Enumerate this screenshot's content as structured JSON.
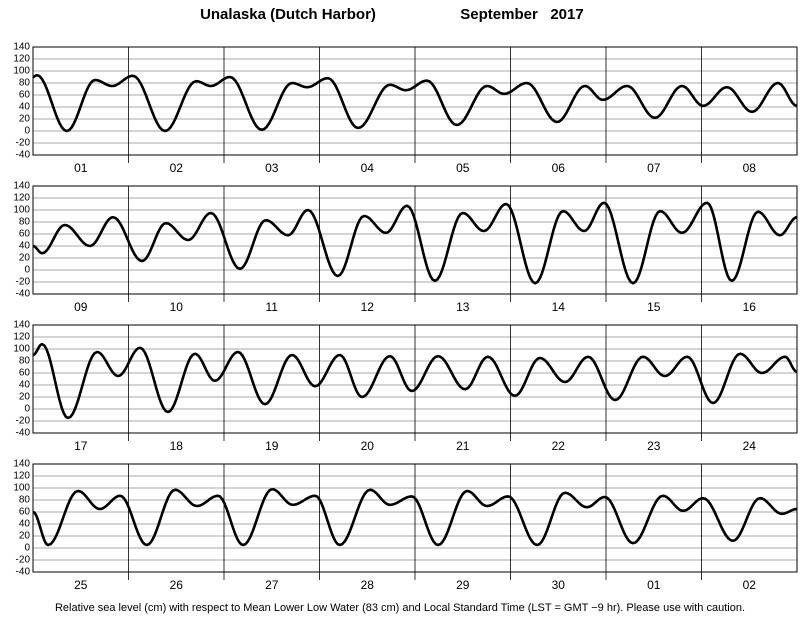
{
  "header": {
    "title": "Unalaska (Dutch Harbor)",
    "date": "September   2017"
  },
  "footnote": "Relative sea level (cm) with respect to Mean Lower Low Water (83 cm) and Local Standard Time (LST = GMT −9 hr). Please use with caution.",
  "chart_data": [
    {
      "type": "line",
      "color": "#000000",
      "xlim": [
        0,
        192
      ],
      "xticks": [
        24,
        48,
        72,
        96,
        120,
        144,
        168
      ],
      "ylim": [
        -40,
        140
      ],
      "yticks": [
        -40,
        -20,
        0,
        20,
        40,
        60,
        80,
        100,
        120,
        140
      ],
      "grid": true,
      "categories": [
        "01",
        "02",
        "03",
        "04",
        "05",
        "06",
        "07",
        "08"
      ],
      "x": [
        0,
        1.0,
        8.5,
        15.6,
        19.9,
        25.1,
        33.2,
        41.0,
        44.7,
        49.5,
        57.5,
        65.1,
        68.9,
        74.1,
        81.7,
        89.7,
        93.7,
        99.0,
        106.5,
        114.1,
        118.4,
        124.1,
        131.7,
        138.7,
        143.2,
        149.3,
        156.3,
        163.1,
        168.4,
        174.4,
        180.7,
        187.2,
        192
      ],
      "values": [
        90,
        93,
        0,
        85,
        75,
        92,
        0,
        83,
        75,
        90,
        2,
        80,
        73,
        88,
        5,
        77,
        68,
        84,
        10,
        75,
        62,
        80,
        15,
        75,
        52,
        75,
        22,
        75,
        42,
        73,
        32,
        80,
        42
      ]
    },
    {
      "type": "line",
      "color": "#000000",
      "xlim": [
        0,
        192
      ],
      "xticks": [
        24,
        48,
        72,
        96,
        120,
        144,
        168
      ],
      "ylim": [
        -40,
        140
      ],
      "yticks": [
        -40,
        -20,
        0,
        20,
        40,
        60,
        80,
        100,
        120,
        140
      ],
      "grid": true,
      "categories": [
        "09",
        "10",
        "11",
        "12",
        "13",
        "14",
        "15",
        "16"
      ],
      "x": [
        0,
        2.3,
        8.0,
        14.3,
        20.1,
        27.4,
        33.4,
        39.0,
        44.7,
        52.0,
        58.5,
        64.1,
        69.1,
        76.6,
        83.2,
        88.7,
        94.0,
        101.0,
        108.0,
        113.3,
        118.9,
        126.2,
        133.2,
        138.5,
        143.5,
        150.8,
        157.6,
        163.1,
        169.4,
        175.6,
        182.2,
        187.7,
        192
      ],
      "values": [
        40,
        28,
        75,
        40,
        88,
        15,
        78,
        50,
        95,
        2,
        83,
        58,
        100,
        -10,
        90,
        62,
        107,
        -18,
        95,
        65,
        110,
        -22,
        98,
        65,
        112,
        -22,
        98,
        62,
        112,
        -18,
        97,
        58,
        88
      ]
    },
    {
      "type": "line",
      "color": "#000000",
      "xlim": [
        0,
        192
      ],
      "xticks": [
        24,
        48,
        72,
        96,
        120,
        144,
        168
      ],
      "ylim": [
        -40,
        140
      ],
      "yticks": [
        -40,
        -20,
        0,
        20,
        40,
        60,
        80,
        100,
        120,
        140
      ],
      "grid": true,
      "categories": [
        "17",
        "18",
        "19",
        "20",
        "21",
        "22",
        "23",
        "24"
      ],
      "x": [
        0,
        2.3,
        8.8,
        16.1,
        21.4,
        26.9,
        33.9,
        40.7,
        45.7,
        51.5,
        58.3,
        65.1,
        70.9,
        77.1,
        82.7,
        89.7,
        95.2,
        101.8,
        108.6,
        114.3,
        121.1,
        127.4,
        133.7,
        139.5,
        146.3,
        153.3,
        158.8,
        164.4,
        170.9,
        177.7,
        183.2,
        189.0,
        192
      ],
      "values": [
        90,
        108,
        -15,
        95,
        55,
        102,
        -5,
        92,
        47,
        95,
        8,
        90,
        38,
        90,
        20,
        88,
        30,
        88,
        33,
        87,
        22,
        85,
        45,
        87,
        15,
        87,
        55,
        87,
        10,
        92,
        60,
        87,
        62
      ]
    },
    {
      "type": "line",
      "color": "#000000",
      "xlim": [
        0,
        192
      ],
      "xticks": [
        24,
        48,
        72,
        96,
        120,
        144,
        168
      ],
      "ylim": [
        -40,
        140
      ],
      "yticks": [
        -40,
        -20,
        0,
        20,
        40,
        60,
        80,
        100,
        120,
        140
      ],
      "grid": true,
      "categories": [
        "25",
        "26",
        "27",
        "28",
        "29",
        "30",
        "01",
        "02"
      ],
      "x": [
        0,
        3.8,
        11.3,
        16.8,
        21.9,
        28.6,
        35.7,
        41.2,
        46.5,
        52.8,
        60.1,
        65.3,
        70.9,
        77.1,
        84.7,
        89.7,
        95.2,
        101.8,
        109.1,
        114.1,
        119.4,
        126.7,
        133.7,
        139.2,
        143.7,
        150.8,
        158.3,
        163.4,
        168.4,
        175.9,
        182.7,
        188.2,
        192
      ],
      "values": [
        60,
        5,
        95,
        65,
        87,
        5,
        97,
        70,
        87,
        5,
        98,
        72,
        87,
        5,
        97,
        72,
        86,
        5,
        95,
        70,
        86,
        5,
        92,
        68,
        85,
        8,
        87,
        62,
        83,
        12,
        83,
        57,
        65
      ]
    }
  ]
}
